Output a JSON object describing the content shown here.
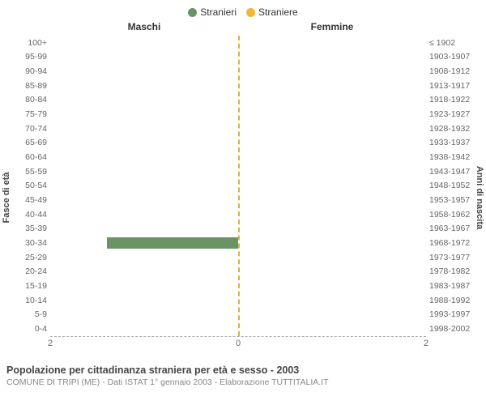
{
  "legend": {
    "items": [
      {
        "label": "Stranieri",
        "color": "#6b9466"
      },
      {
        "label": "Straniere",
        "color": "#f2b736"
      }
    ]
  },
  "chart": {
    "type": "population-pyramid",
    "title_left": "Maschi",
    "title_right": "Femmine",
    "y_left_axis_label": "Fasce di età",
    "y_right_axis_label": "Anni di nascita",
    "center_line_color": "#d4b83c",
    "background_color": "#ffffff",
    "bar_color_male": "#6b9466",
    "bar_color_female": "#f2b736",
    "x_max": 2,
    "x_ticks": [
      2,
      0,
      2
    ],
    "label_fontsize": 10.5,
    "axis_fontsize": 11,
    "rows": [
      {
        "age": "100+",
        "years": "≤ 1902",
        "m": 0,
        "f": 0
      },
      {
        "age": "95-99",
        "years": "1903-1907",
        "m": 0,
        "f": 0
      },
      {
        "age": "90-94",
        "years": "1908-1912",
        "m": 0,
        "f": 0
      },
      {
        "age": "85-89",
        "years": "1913-1917",
        "m": 0,
        "f": 0
      },
      {
        "age": "80-84",
        "years": "1918-1922",
        "m": 0,
        "f": 0
      },
      {
        "age": "75-79",
        "years": "1923-1927",
        "m": 0,
        "f": 0
      },
      {
        "age": "70-74",
        "years": "1928-1932",
        "m": 0,
        "f": 0
      },
      {
        "age": "65-69",
        "years": "1933-1937",
        "m": 0,
        "f": 0
      },
      {
        "age": "60-64",
        "years": "1938-1942",
        "m": 0,
        "f": 0
      },
      {
        "age": "55-59",
        "years": "1943-1947",
        "m": 0,
        "f": 0
      },
      {
        "age": "50-54",
        "years": "1948-1952",
        "m": 0,
        "f": 0
      },
      {
        "age": "45-49",
        "years": "1953-1957",
        "m": 0,
        "f": 0
      },
      {
        "age": "40-44",
        "years": "1958-1962",
        "m": 0,
        "f": 0
      },
      {
        "age": "35-39",
        "years": "1963-1967",
        "m": 0,
        "f": 0
      },
      {
        "age": "30-34",
        "years": "1968-1972",
        "m": 1.4,
        "f": 0
      },
      {
        "age": "25-29",
        "years": "1973-1977",
        "m": 0,
        "f": 0
      },
      {
        "age": "20-24",
        "years": "1978-1982",
        "m": 0,
        "f": 0
      },
      {
        "age": "15-19",
        "years": "1983-1987",
        "m": 0,
        "f": 0
      },
      {
        "age": "10-14",
        "years": "1988-1992",
        "m": 0,
        "f": 0
      },
      {
        "age": "5-9",
        "years": "1993-1997",
        "m": 0,
        "f": 0
      },
      {
        "age": "0-4",
        "years": "1998-2002",
        "m": 0,
        "f": 0
      }
    ]
  },
  "footer": {
    "title": "Popolazione per cittadinanza straniera per età e sesso - 2003",
    "subtitle": "COMUNE DI TRIPI (ME) - Dati ISTAT 1° gennaio 2003 - Elaborazione TUTTITALIA.IT"
  }
}
